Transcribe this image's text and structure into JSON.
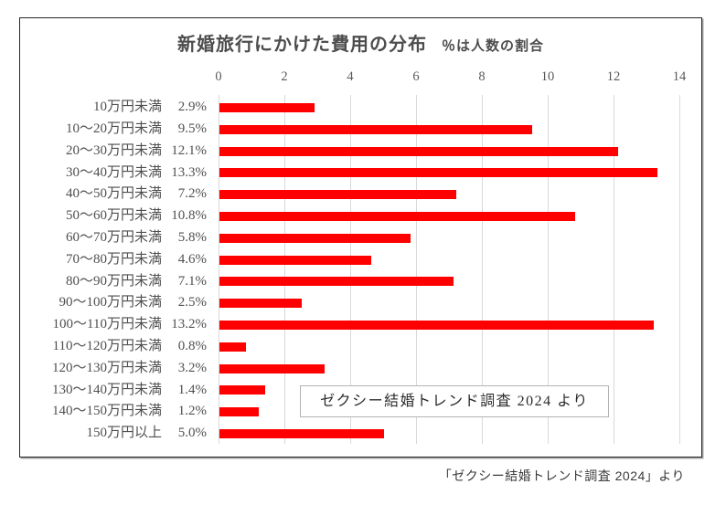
{
  "chart_data": {
    "type": "bar",
    "orientation": "horizontal",
    "title": "新婚旅行にかけた費用の分布",
    "subtitle": "％は人数の割合",
    "categories": [
      "10万円未満",
      "10～20万円未満",
      "20～30万円未満",
      "30～40万円未満",
      "40～50万円未満",
      "50～60万円未満",
      "60～70万円未満",
      "70～80万円未満",
      "80～90万円未満",
      "90～100万円未満",
      "100～110万円未満",
      "110～120万円未満",
      "120～130万円未満",
      "130～140万円未満",
      "140～150万円未満",
      "150万円以上"
    ],
    "values": [
      2.9,
      9.5,
      12.1,
      13.3,
      7.2,
      10.8,
      5.8,
      4.6,
      7.1,
      2.5,
      13.2,
      0.8,
      3.2,
      1.4,
      1.2,
      5.0
    ],
    "value_labels": [
      "2.9%",
      "9.5%",
      "12.1%",
      "13.3%",
      "7.2%",
      "10.8%",
      "5.8%",
      "4.6%",
      "7.1%",
      "2.5%",
      "13.2%",
      "0.8%",
      "3.2%",
      "1.4%",
      "1.2%",
      "5.0%"
    ],
    "xticks": [
      0,
      2,
      4,
      6,
      8,
      10,
      12,
      14
    ],
    "xlim": [
      0,
      14.7
    ],
    "grid": true,
    "legend": false,
    "bar_color": "#FF0000",
    "gridline_color": "#D9D9D9",
    "axis_text_color": "#595959"
  },
  "annotation": {
    "text": "ゼクシー結婚トレンド調査 2024 より"
  },
  "caption": {
    "text": "「ゼクシー結婚トレンド調査 2024」より"
  }
}
